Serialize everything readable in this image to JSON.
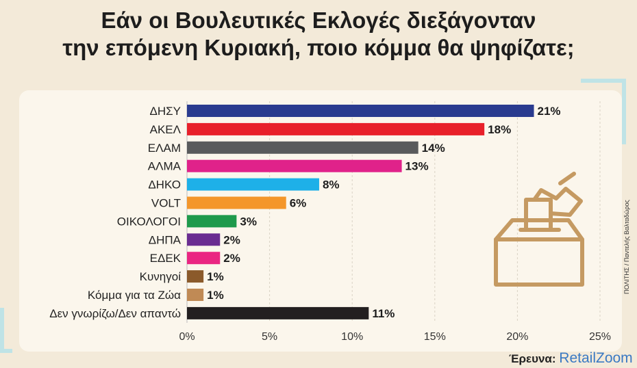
{
  "title": {
    "line1": "Εάν οι Βουλευτικές Εκλογές διεξάγονταν",
    "line2": "την επόμενη Κυριακή, ποιο κόμμα θα ψηφίζατε;"
  },
  "credit": "ΠΟΛΙΤΗΣ / Παντελής Βαλταδώρος",
  "source": {
    "label": "Έρευνα:",
    "brand": "RetailZoom"
  },
  "colors": {
    "accent": "#bfe3e6",
    "icon": "#c59a62",
    "background": "#f3ead9"
  },
  "icons": {
    "ballot": "ballot-box-icon"
  },
  "chart_data": {
    "type": "bar",
    "orientation": "horizontal",
    "title": "Εάν οι Βουλευτικές Εκλογές διεξάγονταν την επόμενη Κυριακή, ποιο κόμμα θα ψηφίζατε;",
    "xlabel": "",
    "ylabel": "",
    "xlim": [
      0,
      25
    ],
    "xticks": [
      "0%",
      "5%",
      "10%",
      "15%",
      "20%",
      "25%"
    ],
    "grid": true,
    "categories": [
      "ΔΗΣΥ",
      "ΑΚΕΛ",
      "ΕΛΑΜ",
      "ΑΛΜΑ",
      "ΔΗΚΟ",
      "VOLT",
      "ΟΙΚΟΛΟΓΟΙ",
      "ΔΗΠΑ",
      "ΕΔΕΚ",
      "Κυνηγοί",
      "Κόμμα για τα Ζώα",
      "Δεν γνωρίζω/Δεν απαντώ"
    ],
    "values": [
      21,
      18,
      14,
      13,
      8,
      6,
      3,
      2,
      2,
      1,
      1,
      11
    ],
    "labels": [
      "21%",
      "18%",
      "14%",
      "13%",
      "8%",
      "6%",
      "3%",
      "2%",
      "2%",
      "1%",
      "1%",
      "11%"
    ],
    "colors": [
      "#2a3b8f",
      "#e8202a",
      "#595a5c",
      "#e0228a",
      "#1eb0e8",
      "#f4962a",
      "#1e9a4c",
      "#6a2c91",
      "#ea2682",
      "#8b5a2b",
      "#c08a55",
      "#231f20"
    ]
  }
}
